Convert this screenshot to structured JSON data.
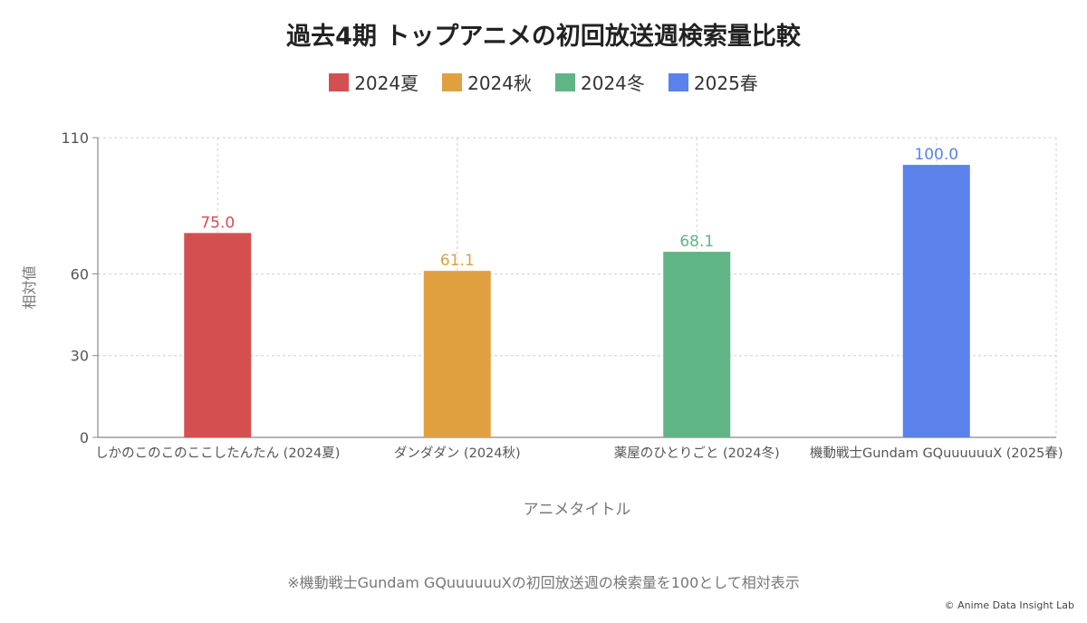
{
  "chart_data": {
    "type": "bar",
    "title": "過去4期 トップアニメの初回放送週検索量比較",
    "categories": [
      "しかのこのこのここしたんたん (2024夏)",
      "ダンダダン (2024秋)",
      "薬屋のひとりごと (2024冬)",
      "機動戦士Gundam GQuuuuuuX (2025春)"
    ],
    "values": [
      75.0,
      61.1,
      68.1,
      100.0
    ],
    "value_labels": [
      "75.0",
      "61.1",
      "68.1",
      "100.0"
    ],
    "colors": [
      "#d45050",
      "#e0a040",
      "#5fb585",
      "#5b82eb"
    ],
    "legend": [
      {
        "label": "2024夏",
        "color": "#d45050"
      },
      {
        "label": "2024秋",
        "color": "#e0a040"
      },
      {
        "label": "2024冬",
        "color": "#5fb585"
      },
      {
        "label": "2025春",
        "color": "#5b82eb"
      }
    ],
    "xlabel": "アニメタイトル",
    "ylabel": "相対値",
    "ylim": [
      0,
      110
    ],
    "yticks": [
      0,
      30,
      60,
      110
    ],
    "grid": true
  },
  "footnote": "※機動戦士Gundam GQuuuuuuXの初回放送週の検索量を100として相対表示",
  "copyright": "Anime Data Insight Lab"
}
